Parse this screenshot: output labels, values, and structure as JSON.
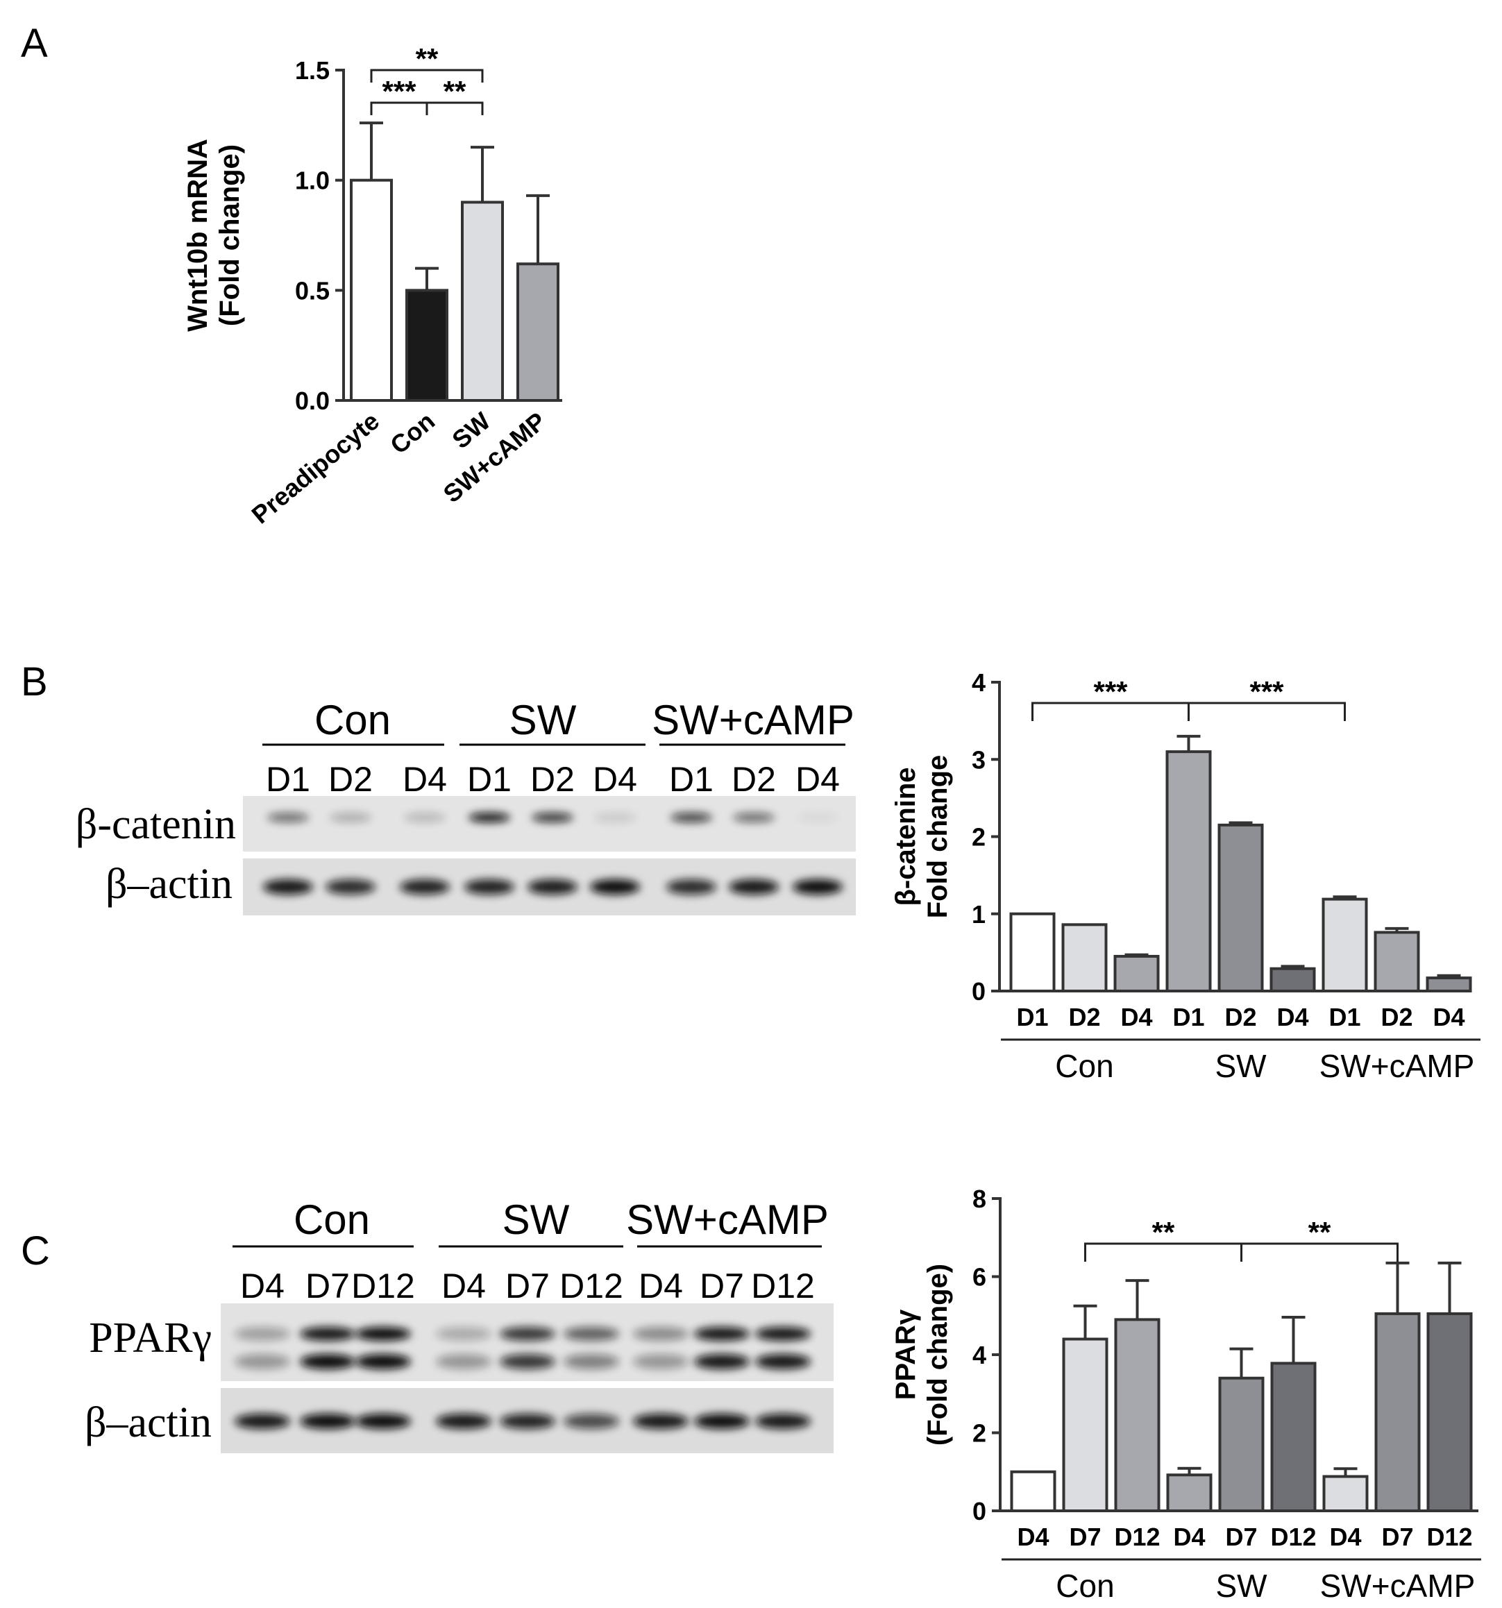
{
  "panels": {
    "a": "A",
    "b": "B",
    "c": "C"
  },
  "chart_data": [
    {
      "type": "bar",
      "panel": "A",
      "categories": [
        "Preadipocyte",
        "Con",
        "SW",
        "SW+cAMP"
      ],
      "values": [
        1.0,
        0.5,
        0.9,
        0.62
      ],
      "errors": [
        0.26,
        0.1,
        0.25,
        0.31
      ],
      "colors": [
        "#ffffff",
        "#1a1a1a",
        "#dcdde0",
        "#a6a8ae"
      ],
      "ylabel_lines": [
        "Wnt10b mRNA",
        "(Fold change)"
      ],
      "ylim": [
        0,
        1.5
      ],
      "yticks": [
        "0.0",
        "0.5",
        "1.0",
        "1.5"
      ],
      "significance": [
        {
          "from": 0,
          "to": 1,
          "label": "***"
        },
        {
          "from": 1,
          "to": 2,
          "label": "**"
        },
        {
          "from": 0,
          "to": 2,
          "label": "**"
        }
      ]
    },
    {
      "type": "bar",
      "panel": "B",
      "categories": [
        "D1",
        "D2",
        "D4",
        "D1",
        "D2",
        "D4",
        "D1",
        "D2",
        "D4"
      ],
      "values": [
        1.0,
        0.86,
        0.45,
        3.1,
        2.15,
        0.29,
        1.19,
        0.76,
        0.17
      ],
      "errors": [
        0.0,
        0.0,
        0.02,
        0.2,
        0.03,
        0.03,
        0.03,
        0.05,
        0.03
      ],
      "colors": [
        "#ffffff",
        "#dcdde0",
        "#a6a8ae",
        "#a6a8ae",
        "#8d8f95",
        "#6e7076",
        "#dcdde0",
        "#a6a8ae",
        "#8d8f95"
      ],
      "groups": [
        "Con",
        "SW",
        "SW+cAMP"
      ],
      "ylabel_lines": [
        "β-catenine",
        "Fold change"
      ],
      "ylim": [
        0,
        4
      ],
      "yticks": [
        "0",
        "1",
        "2",
        "3",
        "4"
      ],
      "significance": [
        {
          "from": 0,
          "to": 3,
          "label": "***"
        },
        {
          "from": 3,
          "to": 6,
          "label": "***"
        }
      ]
    },
    {
      "type": "bar",
      "panel": "C",
      "categories": [
        "D4",
        "D7",
        "D12",
        "D4",
        "D7",
        "D12",
        "D4",
        "D7",
        "D12"
      ],
      "values": [
        1.0,
        4.4,
        4.9,
        0.92,
        3.4,
        3.78,
        0.88,
        5.05,
        5.05
      ],
      "errors": [
        0.0,
        0.85,
        1.0,
        0.17,
        0.75,
        1.18,
        0.2,
        1.3,
        1.3
      ],
      "colors": [
        "#ffffff",
        "#dcdde0",
        "#a6a8ae",
        "#a6a8ae",
        "#8d8f95",
        "#6e7076",
        "#dcdde0",
        "#8d8f95",
        "#6e7076"
      ],
      "groups": [
        "Con",
        "SW",
        "SW+cAMP"
      ],
      "ylabel_lines": [
        "PPARγ",
        "(Fold change)"
      ],
      "ylim": [
        0,
        8
      ],
      "yticks": [
        "0",
        "2",
        "4",
        "6",
        "8"
      ],
      "significance": [
        {
          "from": 1,
          "to": 4,
          "label": "**"
        },
        {
          "from": 4,
          "to": 7,
          "label": "**"
        }
      ]
    }
  ],
  "westerns": {
    "b": {
      "groups": [
        "Con",
        "SW",
        "SW+cAMP"
      ],
      "lanes": [
        "D1",
        "D2",
        "D4",
        "D1",
        "D2",
        "D4",
        "D1",
        "D2",
        "D4"
      ],
      "rows": [
        "β-catenin",
        "β–actin"
      ]
    },
    "c": {
      "groups": [
        "Con",
        "SW",
        "SW+cAMP"
      ],
      "lanes": [
        "D4",
        "D7",
        "D12",
        "D4",
        "D7",
        "D12",
        "D4",
        "D7",
        "D12"
      ],
      "rows": [
        "PPARγ",
        "β–actin"
      ]
    }
  }
}
